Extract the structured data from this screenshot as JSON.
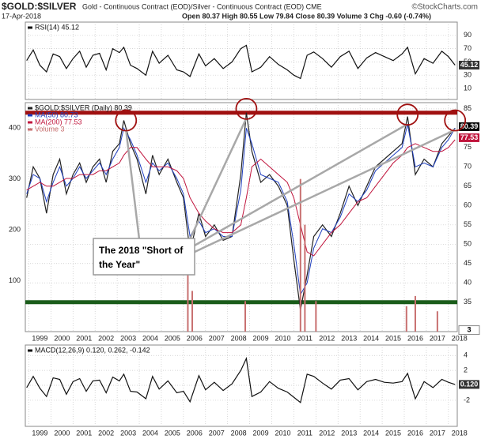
{
  "header": {
    "symbol": "$GOLD:$SILVER",
    "description": "Gold - Continuous Contract (EOD)/Silver - Continuous Contract (EOD) CME",
    "source": "©StockCharts.com",
    "date": "17-Apr-2018",
    "quote": "Open 80.37 High 80.55 Low 79.84 Close 80.39 Volume 3 Chg -0.60 (-0.74%)"
  },
  "chart_data": [
    {
      "type": "line",
      "grid": true,
      "x": [
        1998.9,
        1999.2,
        1999.5,
        1999.8,
        2000.1,
        2000.4,
        2000.7,
        2001.0,
        2001.3,
        2001.6,
        2001.9,
        2002.2,
        2002.5,
        2002.8,
        2003.1,
        2003.3,
        2003.6,
        2003.9,
        2004.3,
        2004.6,
        2004.9,
        2005.3,
        2005.7,
        2006.0,
        2006.3,
        2006.7,
        2007.0,
        2007.4,
        2007.8,
        2008.2,
        2008.6,
        2008.85,
        2009.1,
        2009.5,
        2009.9,
        2010.3,
        2010.7,
        2011.0,
        2011.3,
        2011.6,
        2011.9,
        2012.3,
        2012.7,
        2013.1,
        2013.5,
        2013.9,
        2014.3,
        2014.7,
        2015.1,
        2015.5,
        2015.9,
        2016.15,
        2016.5,
        2016.9,
        2017.3,
        2017.7,
        2018.0,
        2018.3
      ],
      "xlim": [
        1998.84,
        2018.4
      ],
      "xticks": [
        1999,
        2000,
        2001,
        2002,
        2003,
        2004,
        2005,
        2006,
        2007,
        2008,
        2009,
        2010,
        2011,
        2012,
        2013,
        2014,
        2015,
        2016,
        2017,
        2018
      ],
      "ylim": [
        -6.7,
        110
      ],
      "yticks": [
        10,
        30,
        50,
        70,
        90
      ],
      "series": [
        {
          "name": "RSI(14) 45.12",
          "color": "#111111",
          "values": [
            52,
            68,
            45,
            35,
            62,
            58,
            40,
            55,
            66,
            42,
            60,
            63,
            38,
            70,
            64,
            72,
            45,
            40,
            30,
            66,
            48,
            60,
            38,
            35,
            28,
            62,
            44,
            55,
            40,
            50,
            70,
            75,
            35,
            42,
            58,
            46,
            38,
            30,
            25,
            60,
            65,
            55,
            42,
            58,
            66,
            40,
            56,
            64,
            58,
            52,
            62,
            72,
            32,
            55,
            48,
            66,
            58,
            45.12
          ]
        }
      ],
      "value_boxes": [
        {
          "label": "45.12",
          "value": 45.12,
          "color": "#333333"
        }
      ]
    },
    {
      "type": "line",
      "grid": true,
      "x": [
        1998.9,
        1999.2,
        1999.5,
        1999.8,
        2000.1,
        2000.4,
        2000.7,
        2001.0,
        2001.3,
        2001.6,
        2001.9,
        2002.2,
        2002.5,
        2002.8,
        2003.1,
        2003.3,
        2003.6,
        2003.9,
        2004.3,
        2004.6,
        2004.9,
        2005.3,
        2005.7,
        2006.0,
        2006.3,
        2006.7,
        2007.0,
        2007.4,
        2007.8,
        2008.2,
        2008.6,
        2008.85,
        2009.1,
        2009.5,
        2009.9,
        2010.3,
        2010.7,
        2011.0,
        2011.3,
        2011.6,
        2011.9,
        2012.3,
        2012.7,
        2013.1,
        2013.5,
        2013.9,
        2014.3,
        2014.7,
        2015.1,
        2015.5,
        2015.9,
        2016.15,
        2016.5,
        2016.9,
        2017.3,
        2017.7,
        2018.0,
        2018.3
      ],
      "xlim": [
        1998.84,
        2018.4
      ],
      "xticks": [
        1999,
        2000,
        2001,
        2002,
        2003,
        2004,
        2005,
        2006,
        2007,
        2008,
        2009,
        2010,
        2011,
        2012,
        2013,
        2014,
        2015,
        2016,
        2017,
        2018
      ],
      "ylim": [
        27.4,
        86.6
      ],
      "yticks": [
        35,
        40,
        45,
        50,
        55,
        60,
        65,
        70,
        75,
        80,
        85
      ],
      "y2lim": [
        0,
        450
      ],
      "y2ticks": [
        100,
        200,
        300,
        400
      ],
      "series": [
        {
          "name": "$GOLD:$SILVER (Daily) 80.39",
          "color": "#222222",
          "values": [
            62,
            70,
            67,
            58,
            68,
            72,
            63,
            68,
            71,
            66,
            70,
            72,
            66,
            74,
            76,
            82,
            76,
            72,
            63,
            73,
            68,
            72,
            66,
            62,
            48,
            58,
            52,
            55,
            51,
            52,
            68,
            84,
            74,
            66,
            68,
            65,
            60,
            46,
            33,
            42,
            52,
            55,
            52,
            58,
            65,
            60,
            65,
            70,
            72,
            74,
            76,
            83,
            68,
            72,
            70,
            76,
            78,
            80
          ]
        },
        {
          "name": "MA(50) 80.73",
          "color": "#1f3fbf",
          "values": [
            63,
            68,
            67,
            61,
            66,
            70,
            65,
            67,
            70,
            67,
            69,
            71,
            68,
            72,
            75,
            80,
            77,
            73,
            66,
            71,
            69,
            71,
            67,
            63,
            52,
            56,
            53,
            54,
            52,
            52,
            64,
            80,
            76,
            68,
            67,
            66,
            61,
            50,
            37,
            40,
            49,
            54,
            53,
            57,
            63,
            61,
            64,
            69,
            71,
            73,
            75,
            81,
            70,
            71,
            70,
            75,
            77,
            80
          ]
        },
        {
          "name": "MA(200) 77.53",
          "color": "#c0143c",
          "values": [
            64,
            65,
            66,
            65,
            65,
            66,
            67,
            67,
            68,
            68,
            68,
            69,
            69,
            70,
            71,
            73,
            75,
            75,
            72,
            70,
            70,
            70,
            69,
            67,
            62,
            58,
            56,
            54,
            53,
            53,
            55,
            62,
            70,
            72,
            70,
            68,
            66,
            62,
            55,
            48,
            47,
            50,
            53,
            55,
            58,
            61,
            62,
            65,
            68,
            71,
            73,
            75,
            76,
            75,
            74,
            74,
            75,
            77
          ]
        },
        {
          "name": "Volume 3",
          "color": "#c87070",
          "axis": "y2",
          "type": "bar",
          "x": [
            2006.2,
            2006.4,
            2008.8,
            2011.3,
            2011.5,
            2012.0,
            2016.1,
            2016.5,
            2017.5
          ],
          "values": [
            140,
            80,
            60,
            300,
            210,
            60,
            50,
            70,
            40
          ]
        }
      ],
      "value_boxes": [
        {
          "label": "80.39",
          "value": 80.39,
          "color": "#000000"
        },
        {
          "label": "77.53",
          "value": 77.53,
          "color": "#c0143c"
        },
        {
          "label": "3",
          "value": 3,
          "axis": "y2",
          "color": "#ffffff"
        }
      ],
      "hlines": [
        {
          "value": 84,
          "color": "#a01010"
        },
        {
          "value": 35,
          "color": "#1a5c1a"
        }
      ],
      "circles": [
        {
          "x": 2003.4,
          "y": 82
        },
        {
          "x": 2008.85,
          "y": 85
        },
        {
          "x": 2016.15,
          "y": 83.5
        },
        {
          "x": 2018.3,
          "y": 82
        }
      ],
      "callout": [
        "The 2018 \"Short of",
        "the Year\""
      ]
    },
    {
      "type": "line",
      "grid": true,
      "x": [
        1998.9,
        1999.2,
        1999.5,
        1999.8,
        2000.1,
        2000.4,
        2000.7,
        2001.0,
        2001.3,
        2001.6,
        2001.9,
        2002.2,
        2002.5,
        2002.8,
        2003.1,
        2003.3,
        2003.6,
        2003.9,
        2004.3,
        2004.6,
        2004.9,
        2005.3,
        2005.7,
        2006.0,
        2006.3,
        2006.7,
        2007.0,
        2007.4,
        2007.8,
        2008.2,
        2008.6,
        2008.85,
        2009.1,
        2009.5,
        2009.9,
        2010.3,
        2010.7,
        2011.0,
        2011.3,
        2011.6,
        2011.9,
        2012.3,
        2012.7,
        2013.1,
        2013.5,
        2013.9,
        2014.3,
        2014.7,
        2015.1,
        2015.5,
        2015.9,
        2016.15,
        2016.5,
        2016.9,
        2017.3,
        2017.7,
        2018.0,
        2018.3
      ],
      "xlim": [
        1998.84,
        2018.4
      ],
      "xticks": [
        1999,
        2000,
        2001,
        2002,
        2003,
        2004,
        2005,
        2006,
        2007,
        2008,
        2009,
        2010,
        2011,
        2012,
        2013,
        2014,
        2015,
        2016,
        2017,
        2018
      ],
      "ylim": [
        -5.5,
        5.4
      ],
      "yticks": [
        -2,
        0,
        2,
        4
      ],
      "series": [
        {
          "name": "MACD(12,26,9) 0.120, 0.262, -0.142",
          "color": "#111111",
          "values": [
            -0.3,
            1.2,
            -0.4,
            -1.5,
            1.0,
            0.8,
            -1.2,
            0.5,
            0.9,
            -0.8,
            0.6,
            0.7,
            -1.0,
            1.1,
            0.6,
            1.5,
            -0.8,
            -0.9,
            -1.8,
            1.2,
            -0.5,
            0.6,
            -1.0,
            -0.8,
            -2.2,
            1.3,
            -0.6,
            0.4,
            -0.7,
            0.2,
            2.0,
            3.6,
            -1.5,
            -0.9,
            0.5,
            -0.4,
            -0.9,
            -1.6,
            -2.3,
            1.5,
            1.2,
            0.3,
            -0.5,
            0.7,
            0.9,
            -0.6,
            0.5,
            0.8,
            0.4,
            0.3,
            0.5,
            1.6,
            -1.8,
            0.5,
            -0.3,
            0.8,
            0.4,
            0.12
          ]
        }
      ],
      "value_boxes": [
        {
          "label": "0.120",
          "value": 0.12,
          "color": "#333333"
        }
      ]
    }
  ]
}
